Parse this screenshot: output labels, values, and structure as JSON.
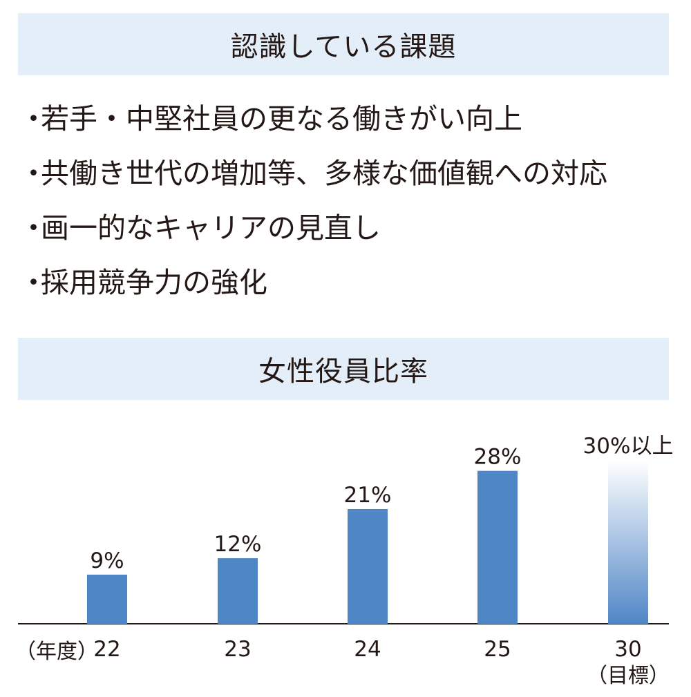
{
  "issues": {
    "title": "認識している課題",
    "bullet": "・",
    "items": [
      "若手・中堅社員の更なる働きがい向上",
      "共働き世代の増加等、多様な価値観への対応",
      "画一的なキャリアの見直し",
      "採用競争力の強化"
    ]
  },
  "chart_section": {
    "title": "女性役員比率",
    "year_unit": "（年度）"
  },
  "colors": {
    "header_background": "#e3eef8",
    "bar": "#4f86c6",
    "target_bar_top": "#ffffff",
    "axis": "#231815"
  },
  "chart_data": {
    "type": "bar",
    "title": "女性役員比率",
    "categories": [
      "22",
      "23",
      "24",
      "25",
      "30"
    ],
    "category_notes": [
      "",
      "",
      "",
      "",
      "（目標）"
    ],
    "values": [
      9,
      12,
      21,
      28,
      30
    ],
    "data_labels": [
      "9%",
      "12%",
      "21%",
      "28%",
      "30%以上"
    ],
    "target_index": 4,
    "xlabel": "（年度）",
    "ylabel": "",
    "ylim": [
      0,
      32
    ],
    "grid": false,
    "legend": "none"
  }
}
